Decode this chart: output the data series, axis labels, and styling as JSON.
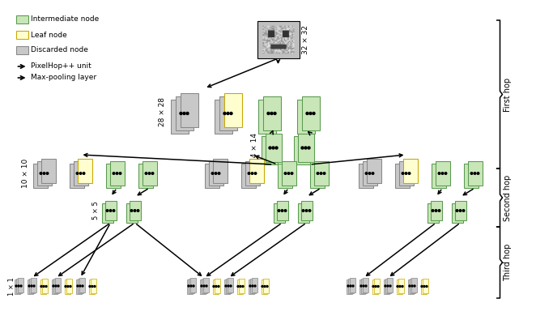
{
  "colors": {
    "green_face": "#c8e6b8",
    "green_edge": "#5a9a50",
    "yellow_face": "#fefece",
    "yellow_edge": "#c8a800",
    "gray_face": "#c8c8c8",
    "gray_edge": "#888888",
    "white": "#ffffff",
    "black": "#000000"
  },
  "legend": {
    "intermediate": "Intermediate node",
    "leaf": "Leaf node",
    "discarded": "Discarded node",
    "pixelhop": "PixelHop++ unit",
    "maxpool": "Max-pooling layer"
  },
  "hops": {
    "first": "First hop",
    "second": "Second hop",
    "third": "Third hop"
  },
  "labels": {
    "input": "32 × 32",
    "hop1": "28 × 28",
    "hop2": "14 × 14",
    "hop3": "10 × 10",
    "sub": "5 × 5",
    "final": "1 × 1"
  }
}
